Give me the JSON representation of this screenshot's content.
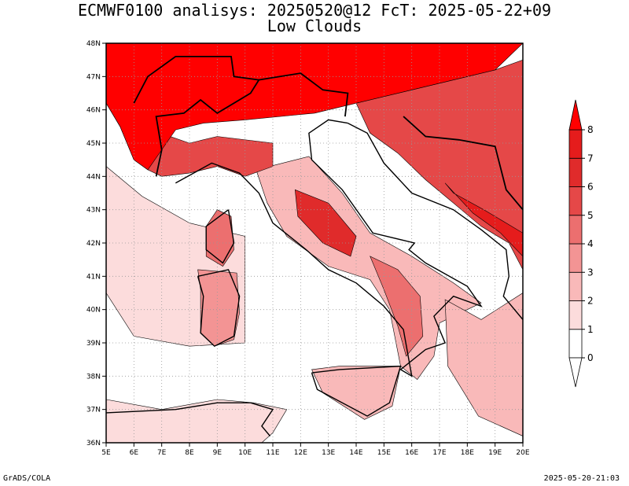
{
  "header": {
    "title_line1": "ECMWF0100 analisys: 20250520@12 FcT: 2025-05-22+09",
    "title_line2": "Low Clouds"
  },
  "map": {
    "lon_labels": [
      "5E",
      "6E",
      "7E",
      "8E",
      "9E",
      "10E",
      "11E",
      "12E",
      "13E",
      "14E",
      "15E",
      "16E",
      "17E",
      "18E",
      "19E",
      "20E"
    ],
    "lat_labels": [
      "36N",
      "37N",
      "38N",
      "39N",
      "40N",
      "41N",
      "42N",
      "43N",
      "44N",
      "45N",
      "46N",
      "47N",
      "48N"
    ],
    "lon_range": [
      5,
      20
    ],
    "lat_range": [
      36,
      48
    ],
    "cloud_regions": [
      {
        "name": "alps",
        "level": 8,
        "points": [
          [
            5,
            48
          ],
          [
            20,
            48
          ],
          [
            19,
            47.2
          ],
          [
            16,
            46.6
          ],
          [
            14,
            46.2
          ],
          [
            12.5,
            45.9
          ],
          [
            10,
            45.7
          ],
          [
            8.5,
            45.6
          ],
          [
            7.5,
            45.4
          ],
          [
            7,
            44.8
          ],
          [
            6.5,
            44.2
          ],
          [
            6,
            44.5
          ],
          [
            5.5,
            45.5
          ],
          [
            5,
            46.2
          ]
        ]
      },
      {
        "name": "alps-halo",
        "level": 5,
        "points": [
          [
            5,
            46.2
          ],
          [
            5.5,
            45.5
          ],
          [
            6,
            44.5
          ],
          [
            6.5,
            44.2
          ],
          [
            7,
            44.0
          ],
          [
            8,
            44.1
          ],
          [
            9,
            44.3
          ],
          [
            10,
            44.0
          ],
          [
            11,
            44.3
          ],
          [
            11,
            45.0
          ],
          [
            9,
            45.2
          ],
          [
            8,
            45.0
          ],
          [
            7.3,
            45.2
          ],
          [
            7,
            45.0
          ],
          [
            6.5,
            45.6
          ],
          [
            6,
            46.4
          ]
        ]
      },
      {
        "name": "balkans",
        "level": 5,
        "points": [
          [
            14,
            46.2
          ],
          [
            16,
            46.6
          ],
          [
            19,
            47.2
          ],
          [
            20,
            47.5
          ],
          [
            20,
            41.2
          ],
          [
            19.5,
            42.0
          ],
          [
            18.5,
            42.5
          ],
          [
            17.5,
            43.2
          ],
          [
            16.5,
            43.9
          ],
          [
            15.5,
            44.7
          ],
          [
            14.5,
            45.3
          ]
        ]
      },
      {
        "name": "balkan-core",
        "level": 7,
        "points": [
          [
            17.5,
            43.5
          ],
          [
            18.6,
            43.0
          ],
          [
            20,
            42.3
          ],
          [
            20,
            41.6
          ],
          [
            19.2,
            42.3
          ],
          [
            18.2,
            42.9
          ],
          [
            17.2,
            43.8
          ]
        ]
      },
      {
        "name": "apennines-north",
        "level": 6,
        "points": [
          [
            11.8,
            43.6
          ],
          [
            13.0,
            43.2
          ],
          [
            14.0,
            42.2
          ],
          [
            13.8,
            41.6
          ],
          [
            12.8,
            42.0
          ],
          [
            11.9,
            42.8
          ]
        ]
      },
      {
        "name": "apennines-south",
        "level": 4,
        "points": [
          [
            14.5,
            41.6
          ],
          [
            15.5,
            41.2
          ],
          [
            16.3,
            40.4
          ],
          [
            16.4,
            39.2
          ],
          [
            15.8,
            38.6
          ],
          [
            15.5,
            39.5
          ],
          [
            15.0,
            40.6
          ]
        ]
      },
      {
        "name": "italy-base",
        "level": 2,
        "points": [
          [
            10.4,
            44.2
          ],
          [
            12.3,
            44.6
          ],
          [
            13.5,
            43.5
          ],
          [
            14.5,
            42.3
          ],
          [
            16,
            41.6
          ],
          [
            17.5,
            40.8
          ],
          [
            18.5,
            40.2
          ],
          [
            17,
            39.6
          ],
          [
            16.8,
            38.6
          ],
          [
            16.2,
            37.9
          ],
          [
            15.6,
            38.3
          ],
          [
            15.2,
            40
          ],
          [
            14.5,
            40.9
          ],
          [
            13,
            41.3
          ],
          [
            11.5,
            42.2
          ],
          [
            10.8,
            43.2
          ]
        ]
      },
      {
        "name": "corsica",
        "level": 4,
        "points": [
          [
            9.0,
            43.0
          ],
          [
            9.5,
            42.8
          ],
          [
            9.6,
            41.8
          ],
          [
            9.2,
            41.3
          ],
          [
            8.6,
            41.6
          ],
          [
            8.6,
            42.5
          ]
        ]
      },
      {
        "name": "sardinia",
        "level": 3,
        "points": [
          [
            8.3,
            41.2
          ],
          [
            9.7,
            41.1
          ],
          [
            9.8,
            39.9
          ],
          [
            9.6,
            39.1
          ],
          [
            8.9,
            38.9
          ],
          [
            8.4,
            39.3
          ],
          [
            8.4,
            40.6
          ]
        ]
      },
      {
        "name": "sicily",
        "level": 2,
        "points": [
          [
            12.4,
            38.2
          ],
          [
            13.4,
            38.3
          ],
          [
            15.6,
            38.3
          ],
          [
            15.3,
            37.1
          ],
          [
            14.3,
            36.7
          ],
          [
            12.8,
            37.5
          ]
        ]
      },
      {
        "name": "sea-patch-east",
        "level": 2,
        "points": [
          [
            17.2,
            40.3
          ],
          [
            18.5,
            39.7
          ],
          [
            20,
            40.5
          ],
          [
            20,
            36.2
          ],
          [
            18.4,
            36.8
          ],
          [
            17.3,
            38.3
          ]
        ]
      },
      {
        "name": "sea-patch-west",
        "level": 1,
        "points": [
          [
            5,
            44.3
          ],
          [
            6.3,
            43.4
          ],
          [
            8,
            42.6
          ],
          [
            10,
            42.2
          ],
          [
            10,
            39.0
          ],
          [
            8,
            38.9
          ],
          [
            6,
            39.2
          ],
          [
            5,
            40.5
          ]
        ]
      },
      {
        "name": "africa-coast",
        "level": 1,
        "points": [
          [
            5,
            37.3
          ],
          [
            7,
            37.0
          ],
          [
            9,
            37.3
          ],
          [
            10.3,
            37.2
          ],
          [
            11.5,
            37.0
          ],
          [
            11,
            36.3
          ],
          [
            10.6,
            36.0
          ],
          [
            5,
            36
          ]
        ]
      }
    ],
    "coast_lines": [
      {
        "name": "italy-coast",
        "points": [
          [
            7.5,
            43.8
          ],
          [
            8.8,
            44.4
          ],
          [
            9.8,
            44.1
          ],
          [
            10.5,
            43.5
          ],
          [
            11.0,
            42.6
          ],
          [
            12.2,
            41.8
          ],
          [
            13.0,
            41.2
          ],
          [
            14.0,
            40.8
          ],
          [
            15.0,
            40.1
          ],
          [
            15.7,
            39.4
          ],
          [
            16.0,
            38.0
          ],
          [
            15.6,
            38.2
          ],
          [
            16.5,
            38.8
          ],
          [
            17.2,
            39.0
          ],
          [
            16.8,
            39.8
          ],
          [
            17.5,
            40.4
          ],
          [
            18.5,
            40.1
          ],
          [
            18.0,
            40.7
          ],
          [
            16.5,
            41.4
          ],
          [
            15.9,
            41.8
          ],
          [
            16.1,
            42.0
          ],
          [
            14.6,
            42.3
          ],
          [
            13.5,
            43.6
          ],
          [
            12.4,
            44.5
          ],
          [
            12.3,
            45.3
          ],
          [
            13.0,
            45.7
          ],
          [
            13.7,
            45.6
          ]
        ]
      },
      {
        "name": "corsica-coast",
        "points": [
          [
            9.4,
            43.0
          ],
          [
            9.6,
            42.0
          ],
          [
            9.2,
            41.4
          ],
          [
            8.6,
            41.8
          ],
          [
            8.6,
            42.5
          ],
          [
            9.4,
            43.0
          ]
        ]
      },
      {
        "name": "sardinia-coast",
        "points": [
          [
            8.3,
            41.0
          ],
          [
            9.4,
            41.2
          ],
          [
            9.8,
            40.4
          ],
          [
            9.6,
            39.2
          ],
          [
            8.9,
            38.9
          ],
          [
            8.4,
            39.3
          ],
          [
            8.5,
            40.4
          ],
          [
            8.3,
            41.0
          ]
        ]
      },
      {
        "name": "sicily-coast",
        "points": [
          [
            12.4,
            38.1
          ],
          [
            13.4,
            38.2
          ],
          [
            15.6,
            38.3
          ],
          [
            15.2,
            37.2
          ],
          [
            14.4,
            36.8
          ],
          [
            12.6,
            37.6
          ],
          [
            12.4,
            38.1
          ]
        ]
      },
      {
        "name": "balkan-coast",
        "points": [
          [
            13.7,
            45.6
          ],
          [
            14.4,
            45.3
          ],
          [
            15.0,
            44.4
          ],
          [
            16.0,
            43.5
          ],
          [
            17.5,
            43.0
          ],
          [
            18.5,
            42.4
          ],
          [
            19.4,
            41.8
          ],
          [
            19.5,
            41.0
          ],
          [
            19.3,
            40.4
          ],
          [
            20,
            39.7
          ]
        ]
      },
      {
        "name": "africa-coast-line",
        "points": [
          [
            5,
            36.9
          ],
          [
            7.5,
            37.0
          ],
          [
            9.0,
            37.2
          ],
          [
            10.2,
            37.2
          ],
          [
            11.0,
            37.0
          ],
          [
            10.6,
            36.5
          ],
          [
            10.9,
            36.2
          ]
        ]
      }
    ],
    "borders": [
      {
        "name": "alpine-border",
        "points": [
          [
            6.8,
            44.0
          ],
          [
            7.0,
            44.8
          ],
          [
            6.8,
            45.8
          ],
          [
            7.8,
            45.9
          ],
          [
            8.4,
            46.3
          ],
          [
            9.0,
            45.9
          ],
          [
            10.2,
            46.5
          ],
          [
            10.5,
            46.9
          ],
          [
            12.0,
            47.1
          ],
          [
            12.8,
            46.6
          ],
          [
            13.7,
            46.5
          ],
          [
            13.6,
            45.8
          ]
        ]
      },
      {
        "name": "swiss-border",
        "points": [
          [
            6,
            46.2
          ],
          [
            6.5,
            47.0
          ],
          [
            7.5,
            47.6
          ],
          [
            9.5,
            47.6
          ],
          [
            9.6,
            47.0
          ],
          [
            10.5,
            46.9
          ]
        ]
      },
      {
        "name": "balkan-borders",
        "points": [
          [
            15.7,
            45.8
          ],
          [
            16.5,
            45.2
          ],
          [
            17.7,
            45.1
          ],
          [
            19.0,
            44.9
          ],
          [
            19.4,
            43.6
          ],
          [
            20,
            43.0
          ]
        ]
      }
    ]
  },
  "colorbar": {
    "labels": [
      "0",
      "1",
      "2",
      "3",
      "4",
      "5",
      "6",
      "7",
      "8"
    ],
    "colors": [
      "#ffffff",
      "#fcdcdc",
      "#f9b9b9",
      "#f39494",
      "#ec6f6f",
      "#e54848",
      "#e02b2b",
      "#e51c1c",
      "#ff0000"
    ]
  },
  "footer": {
    "left": "GrADS/COLA",
    "right": "2025-05-20-21:03"
  }
}
